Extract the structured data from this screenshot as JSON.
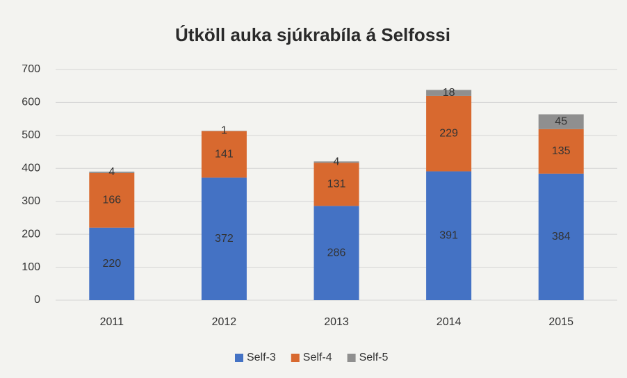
{
  "chart_data": {
    "type": "stacked_bar",
    "title": "Útköll auka sjúkrabíla á Selfossi",
    "categories": [
      "2011",
      "2012",
      "2013",
      "2014",
      "2015"
    ],
    "series": [
      {
        "name": "Self-3",
        "color": "#4472c4",
        "values": [
          220,
          372,
          286,
          391,
          384
        ]
      },
      {
        "name": "Self-4",
        "color": "#d8692f",
        "values": [
          166,
          141,
          131,
          229,
          135
        ]
      },
      {
        "name": "Self-5",
        "color": "#8f8f8f",
        "values": [
          4,
          1,
          4,
          18,
          45
        ]
      }
    ],
    "ylim": [
      0,
      700
    ],
    "yticks": [
      0,
      100,
      200,
      300,
      400,
      500,
      600,
      700
    ],
    "grid": true,
    "legend": "bottom"
  }
}
